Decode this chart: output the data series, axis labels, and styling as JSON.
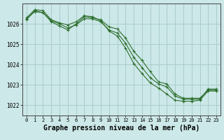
{
  "background_color": "#cce8e8",
  "grid_color": "#aacccc",
  "line_color": "#2d6e2d",
  "marker_color": "#2d6e2d",
  "xlabel": "Graphe pression niveau de la mer (hPa)",
  "xlabel_fontsize": 7.0,
  "ylim": [
    1021.5,
    1027.0
  ],
  "xlim": [
    -0.5,
    23.5
  ],
  "yticks": [
    1022,
    1023,
    1024,
    1025,
    1026
  ],
  "xticks": [
    0,
    1,
    2,
    3,
    4,
    5,
    6,
    7,
    8,
    9,
    10,
    11,
    12,
    13,
    14,
    15,
    16,
    17,
    18,
    19,
    20,
    21,
    22,
    23
  ],
  "series": [
    [
      1026.2,
      1026.65,
      1026.55,
      1026.1,
      1025.9,
      1025.7,
      1026.0,
      1026.35,
      1026.3,
      1026.2,
      1025.85,
      1025.75,
      1025.3,
      1024.65,
      1024.2,
      1023.65,
      1023.15,
      1023.05,
      1022.55,
      1022.35,
      1022.35,
      1022.35,
      1022.75,
      1022.75
    ],
    [
      1026.3,
      1026.7,
      1026.65,
      1026.2,
      1026.05,
      1025.95,
      1026.1,
      1026.4,
      1026.35,
      1026.15,
      1025.65,
      1025.4,
      1024.8,
      1024.05,
      1023.55,
      1023.1,
      1022.85,
      1022.55,
      1022.25,
      1022.2,
      1022.2,
      1022.25,
      1022.7,
      1022.7
    ],
    [
      1026.25,
      1026.6,
      1026.55,
      1026.15,
      1026.0,
      1025.8,
      1025.95,
      1026.25,
      1026.25,
      1026.1,
      1025.7,
      1025.55,
      1025.05,
      1024.35,
      1023.85,
      1023.35,
      1023.05,
      1022.9,
      1022.45,
      1022.3,
      1022.3,
      1022.3,
      1022.8,
      1022.8
    ]
  ]
}
